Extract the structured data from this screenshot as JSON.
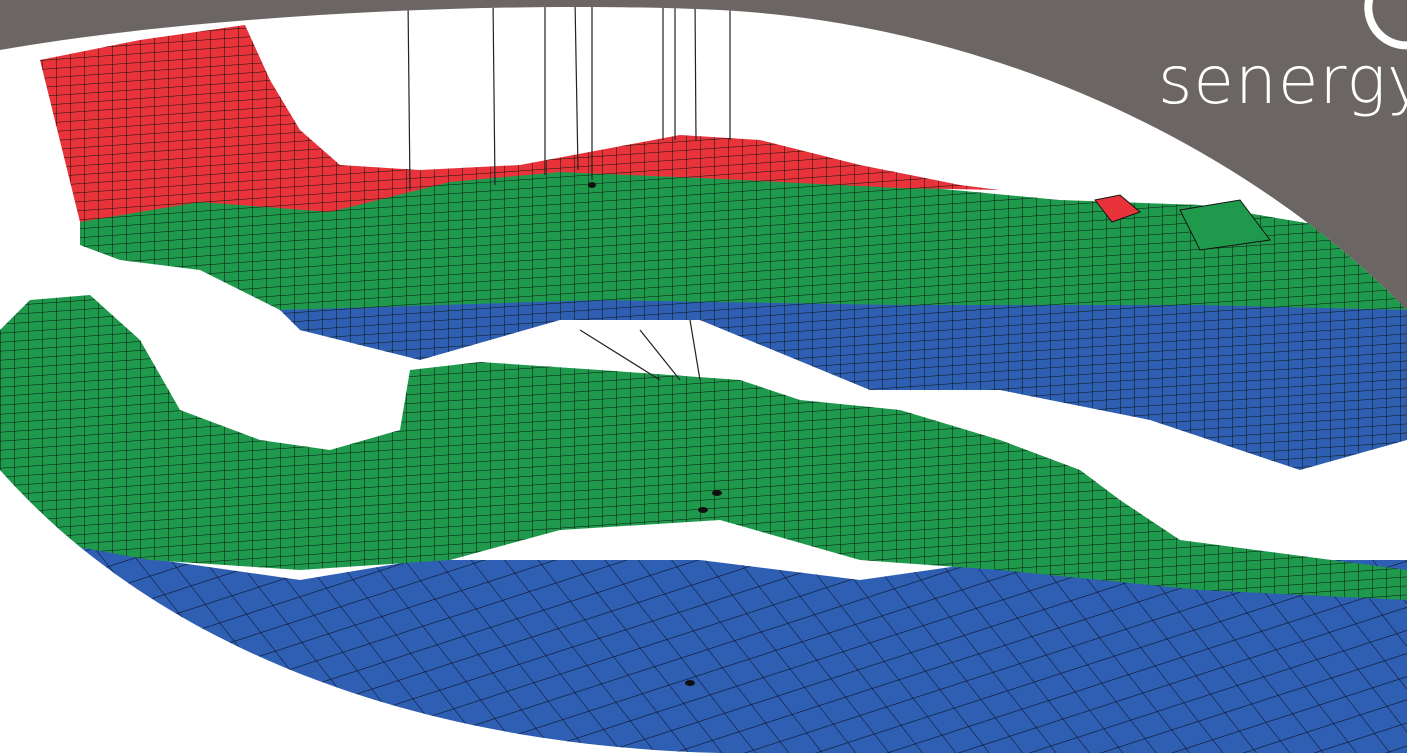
{
  "logo": {
    "text": "senergy"
  }
}
